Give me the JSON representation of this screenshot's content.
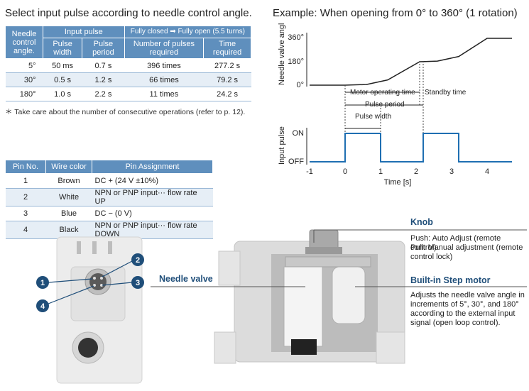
{
  "left_heading": "Select input pulse according to needle control angle.",
  "right_heading": "Example: When opening from 0° to 360° (1 rotation)",
  "table1": {
    "col_angle": "Needle control angle.",
    "group_input": "Input pulse",
    "group_full": "Fully closed ➡ Fully open (5.5 turns)",
    "col_width": "Pulse width",
    "col_period": "Pulse period",
    "col_number": "Number of pulses required",
    "col_time": "Time required",
    "rows": [
      {
        "angle": "5°",
        "width": "50 ms",
        "period": "0.7 s",
        "number": "396 times",
        "time": "277.2 s"
      },
      {
        "angle": "30°",
        "width": "0.5 s",
        "period": "1.2 s",
        "number": "66 times",
        "time": "79.2 s"
      },
      {
        "angle": "180°",
        "width": "1.0 s",
        "period": "2.2 s",
        "number": "11 times",
        "time": "24.2 s"
      }
    ],
    "note": "＊ Take care about the number of consecutive operations (refer to p. 12)."
  },
  "table2": {
    "col_pin": "Pin No.",
    "col_wire": "Wire color",
    "col_assign": "Pin Assignment",
    "rows": [
      {
        "pin": "1",
        "wire": "Brown",
        "assign": "DC + (24 V ±10%)"
      },
      {
        "pin": "2",
        "wire": "White",
        "assign": "NPN or PNP input··· flow rate UP"
      },
      {
        "pin": "3",
        "wire": "Blue",
        "assign": "DC − (0 V)"
      },
      {
        "pin": "4",
        "wire": "Black",
        "assign": "NPN or PNP input··· flow rate DOWN"
      }
    ]
  },
  "chart_data": [
    {
      "type": "line",
      "ylabel": "Needle valve angle",
      "yticks": [
        "0°",
        "180°",
        "360°"
      ],
      "series": [
        {
          "x": [
            -1,
            0,
            0.6,
            1.2,
            2.1,
            2.6,
            3.2,
            4.0,
            4.7
          ],
          "y": [
            0,
            0,
            5,
            40,
            180,
            185,
            220,
            360,
            360
          ]
        }
      ],
      "annotations": {
        "motor_operating_time": "Motor operating time",
        "standby_time": "Standby time",
        "pulse_period": "Pulse period",
        "pulse_width": "Pulse width"
      }
    },
    {
      "type": "line",
      "ylabel": "Input pulse",
      "yticks": [
        "OFF",
        "ON"
      ],
      "xlabel": "Time [s]",
      "xticks": [
        "-1",
        "0",
        "1",
        "2",
        "3",
        "4"
      ],
      "series": [
        {
          "x": [
            -1,
            0,
            0,
            1,
            1,
            2.2,
            2.2,
            3.2,
            3.2,
            4.7
          ],
          "y": [
            0,
            0,
            1,
            1,
            0,
            0,
            1,
            1,
            0,
            0
          ]
        }
      ]
    }
  ],
  "product": {
    "callouts": [
      "1",
      "2",
      "3",
      "4"
    ],
    "needle_valve_label": "Needle valve",
    "knob_title": "Knob",
    "knob_push": "Push: Auto Adjust (remote control)",
    "knob_pull": "Pull:  Manual adjustment (remote control lock)",
    "motor_title": "Built-in Step motor",
    "motor_desc": "Adjusts the needle valve angle in increments of 5°, 30°, and 180° according to the external input signal (open loop control)."
  },
  "colors": {
    "table_header": "#5f8fbd",
    "table_stripe": "#e6eef6",
    "pulse_line": "#1f6fb2",
    "callout": "#1f4e79"
  }
}
